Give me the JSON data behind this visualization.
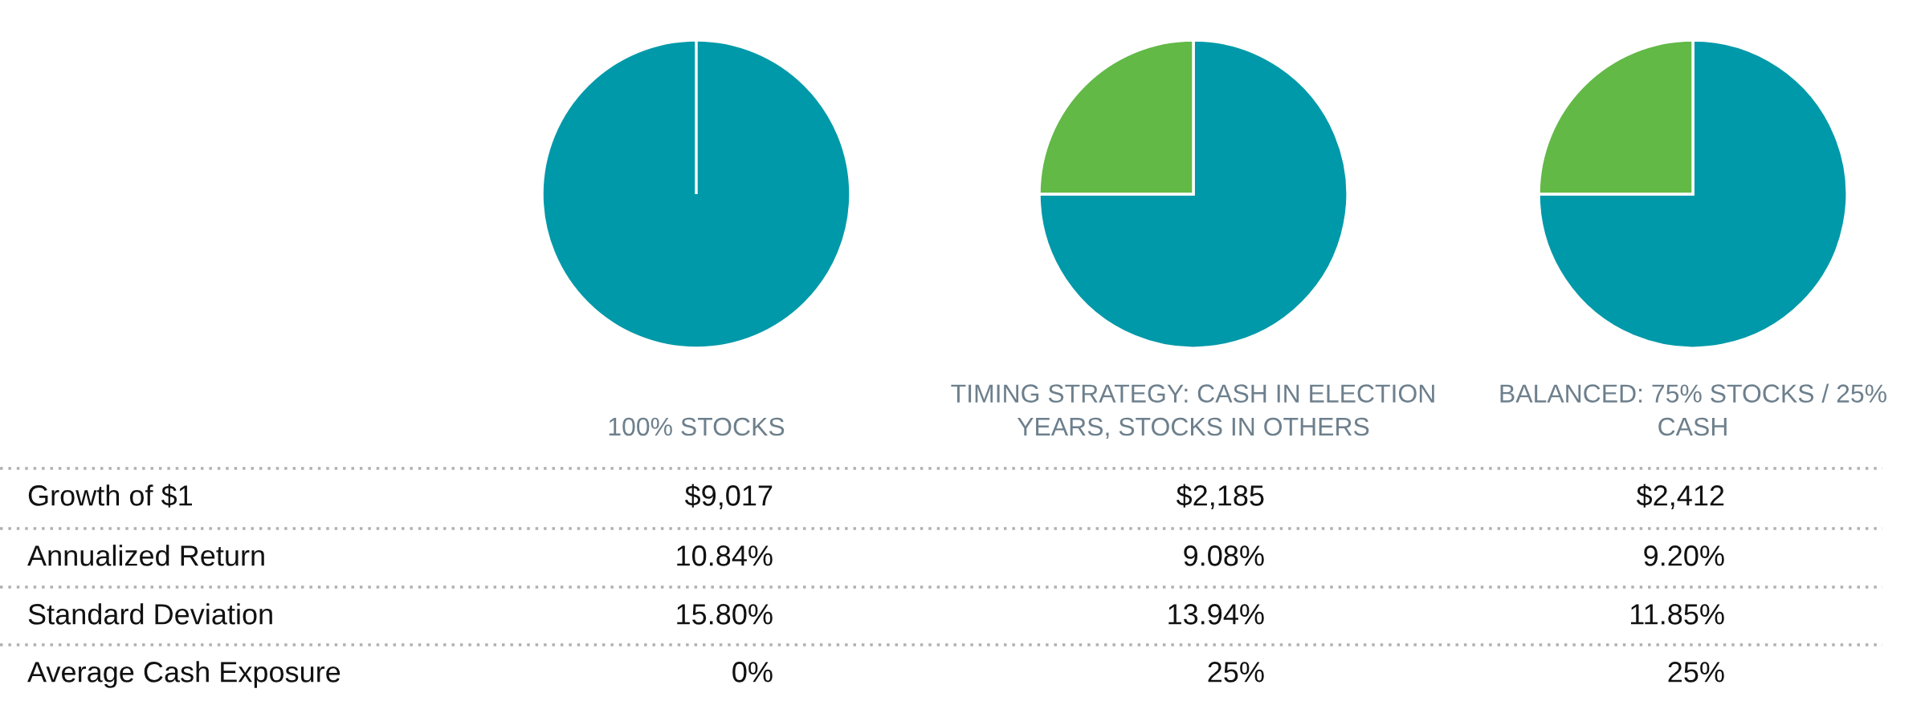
{
  "chart_data": [
    {
      "type": "other",
      "annotations": [
        "Growth of $1",
        "Annualized Return",
        "Standard Deviation",
        "Average Cash Exposure"
      ]
    },
    {
      "type": "pie",
      "title": "100% STOCKS",
      "categories": [
        null,
        null
      ],
      "values": [
        100,
        0
      ],
      "colors": [
        "#0099a9",
        "#62b946"
      ],
      "annotations": [
        "$9,017",
        "10.84%",
        "15.80%",
        "0%"
      ]
    },
    {
      "type": "pie",
      "title": "TIMING STRATEGY: CASH IN ELECTION\nYEARS, STOCKS IN OTHERS",
      "categories": [
        null,
        null
      ],
      "values": [
        75,
        25
      ],
      "colors": [
        "#0099a9",
        "#62b946"
      ],
      "annotations": [
        "$2,185",
        "9.08%",
        "13.94%",
        "25%"
      ]
    },
    {
      "type": "pie",
      "title": "BALANCED: 75% STOCKS / 25%\nCASH",
      "categories": [
        null,
        null
      ],
      "values": [
        75,
        25
      ],
      "colors": [
        "#0099a9",
        "#62b946"
      ],
      "annotations": [
        "$2,412",
        "9.20%",
        "11.85%",
        "25%"
      ]
    }
  ]
}
